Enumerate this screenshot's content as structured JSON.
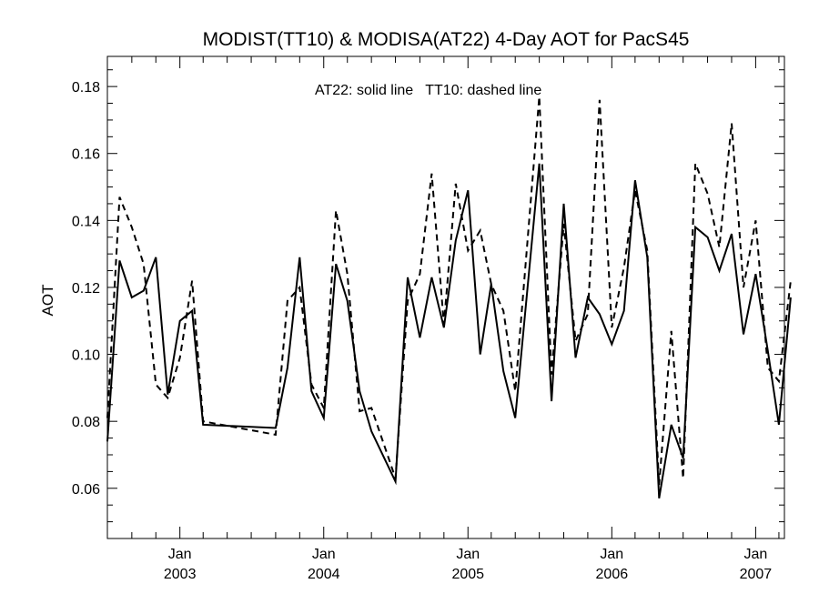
{
  "chart_data": {
    "type": "line",
    "title": "MODIST(TT10) & MODISA(AT22) 4-Day AOT for PacS45",
    "xlabel": "",
    "ylabel": "AOT",
    "annotation": "AT22: solid line   TT10: dashed line",
    "x_range": [
      "2002-07-01",
      "2007-03-15"
    ],
    "ylim": [
      0.045,
      0.189
    ],
    "y_ticks": [
      0.06,
      0.08,
      0.1,
      0.12,
      0.14,
      0.16,
      0.18
    ],
    "y_tick_labels": [
      "0.06",
      "0.08",
      "0.10",
      "0.12",
      "0.14",
      "0.16",
      "0.18"
    ],
    "x_ticks": [
      {
        "date": "2003-01-01",
        "month": "Jan",
        "year": "2003"
      },
      {
        "date": "2004-01-01",
        "month": "Jan",
        "year": "2004"
      },
      {
        "date": "2005-01-01",
        "month": "Jan",
        "year": "2005"
      },
      {
        "date": "2006-01-01",
        "month": "Jan",
        "year": "2006"
      },
      {
        "date": "2007-01-01",
        "month": "Jan",
        "year": "2007"
      }
    ],
    "grid": false,
    "series": [
      {
        "name": "AT22",
        "style": "solid",
        "points": [
          [
            "2002-07-01",
            0.074
          ],
          [
            "2002-08-01",
            0.128
          ],
          [
            "2002-09-01",
            0.117
          ],
          [
            "2002-10-01",
            0.119
          ],
          [
            "2002-11-01",
            0.129
          ],
          [
            "2002-12-01",
            0.088
          ],
          [
            "2003-01-01",
            0.11
          ],
          [
            "2003-02-01",
            0.113
          ],
          [
            "2003-03-01",
            0.079
          ],
          [
            "2003-09-01",
            0.078
          ],
          [
            "2003-10-01",
            0.096
          ],
          [
            "2003-11-01",
            0.129
          ],
          [
            "2003-12-01",
            0.089
          ],
          [
            "2004-01-01",
            0.081
          ],
          [
            "2004-02-01",
            0.127
          ],
          [
            "2004-03-01",
            0.116
          ],
          [
            "2004-04-01",
            0.089
          ],
          [
            "2004-05-01",
            0.077
          ],
          [
            "2004-07-01",
            0.062
          ],
          [
            "2004-08-01",
            0.123
          ],
          [
            "2004-09-01",
            0.105
          ],
          [
            "2004-10-01",
            0.123
          ],
          [
            "2004-11-01",
            0.108
          ],
          [
            "2004-12-01",
            0.134
          ],
          [
            "2005-01-01",
            0.149
          ],
          [
            "2005-02-01",
            0.1
          ],
          [
            "2005-03-01",
            0.121
          ],
          [
            "2005-04-01",
            0.095
          ],
          [
            "2005-05-01",
            0.081
          ],
          [
            "2005-07-01",
            0.157
          ],
          [
            "2005-08-01",
            0.086
          ],
          [
            "2005-09-01",
            0.145
          ],
          [
            "2005-10-01",
            0.099
          ],
          [
            "2005-11-01",
            0.117
          ],
          [
            "2005-12-01",
            0.112
          ],
          [
            "2006-01-01",
            0.103
          ],
          [
            "2006-02-01",
            0.113
          ],
          [
            "2006-03-01",
            0.152
          ],
          [
            "2006-04-01",
            0.129
          ],
          [
            "2006-05-01",
            0.057
          ],
          [
            "2006-06-01",
            0.079
          ],
          [
            "2006-07-01",
            0.069
          ],
          [
            "2006-08-01",
            0.138
          ],
          [
            "2006-09-01",
            0.135
          ],
          [
            "2006-10-01",
            0.125
          ],
          [
            "2006-11-01",
            0.136
          ],
          [
            "2006-12-01",
            0.106
          ],
          [
            "2007-01-01",
            0.124
          ],
          [
            "2007-02-01",
            0.101
          ],
          [
            "2007-03-01",
            0.079
          ],
          [
            "2007-03-31",
            0.117
          ]
        ]
      },
      {
        "name": "TT10",
        "style": "dashed",
        "points": [
          [
            "2002-07-01",
            0.081
          ],
          [
            "2002-08-01",
            0.147
          ],
          [
            "2002-09-01",
            0.138
          ],
          [
            "2002-10-01",
            0.127
          ],
          [
            "2002-11-01",
            0.091
          ],
          [
            "2002-12-01",
            0.087
          ],
          [
            "2003-01-01",
            0.099
          ],
          [
            "2003-02-01",
            0.122
          ],
          [
            "2003-03-01",
            0.08
          ],
          [
            "2003-09-01",
            0.076
          ],
          [
            "2003-10-01",
            0.116
          ],
          [
            "2003-11-01",
            0.12
          ],
          [
            "2003-12-01",
            0.091
          ],
          [
            "2004-01-01",
            0.084
          ],
          [
            "2004-02-01",
            0.143
          ],
          [
            "2004-03-01",
            0.124
          ],
          [
            "2004-04-01",
            0.083
          ],
          [
            "2004-05-01",
            0.084
          ],
          [
            "2004-07-01",
            0.063
          ],
          [
            "2004-08-01",
            0.116
          ],
          [
            "2004-09-01",
            0.124
          ],
          [
            "2004-10-01",
            0.154
          ],
          [
            "2004-11-01",
            0.109
          ],
          [
            "2004-12-01",
            0.151
          ],
          [
            "2005-01-01",
            0.131
          ],
          [
            "2005-02-01",
            0.137
          ],
          [
            "2005-03-01",
            0.121
          ],
          [
            "2005-04-01",
            0.113
          ],
          [
            "2005-05-01",
            0.089
          ],
          [
            "2005-07-01",
            0.177
          ],
          [
            "2005-08-01",
            0.094
          ],
          [
            "2005-09-01",
            0.139
          ],
          [
            "2005-10-01",
            0.104
          ],
          [
            "2005-11-01",
            0.112
          ],
          [
            "2005-12-01",
            0.176
          ],
          [
            "2006-01-01",
            0.108
          ],
          [
            "2006-02-01",
            0.126
          ],
          [
            "2006-03-01",
            0.149
          ],
          [
            "2006-04-01",
            0.131
          ],
          [
            "2006-05-01",
            0.061
          ],
          [
            "2006-06-01",
            0.107
          ],
          [
            "2006-07-01",
            0.063
          ],
          [
            "2006-08-01",
            0.157
          ],
          [
            "2006-09-01",
            0.148
          ],
          [
            "2006-10-01",
            0.132
          ],
          [
            "2006-11-01",
            0.169
          ],
          [
            "2006-12-01",
            0.12
          ],
          [
            "2007-01-01",
            0.14
          ],
          [
            "2007-02-01",
            0.096
          ],
          [
            "2007-03-01",
            0.092
          ],
          [
            "2007-03-31",
            0.122
          ]
        ]
      }
    ]
  }
}
